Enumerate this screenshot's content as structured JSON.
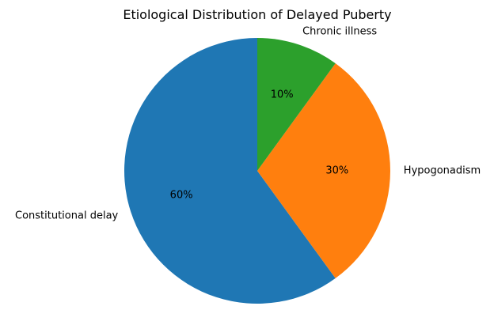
{
  "chart_data": {
    "type": "pie",
    "title": "Etiological Distribution of Delayed Puberty",
    "slices": [
      {
        "label": "Constitutional delay",
        "value": 60,
        "pct_label": "60%",
        "color": "#1f77b4"
      },
      {
        "label": "Hypogonadism",
        "value": 30,
        "pct_label": "30%",
        "color": "#ff7f0e"
      },
      {
        "label": "Chronic illness",
        "value": 10,
        "pct_label": "10%",
        "color": "#2ca02c"
      }
    ],
    "start_angle_deg": 90,
    "direction": "counterclockwise",
    "legend": "none"
  }
}
